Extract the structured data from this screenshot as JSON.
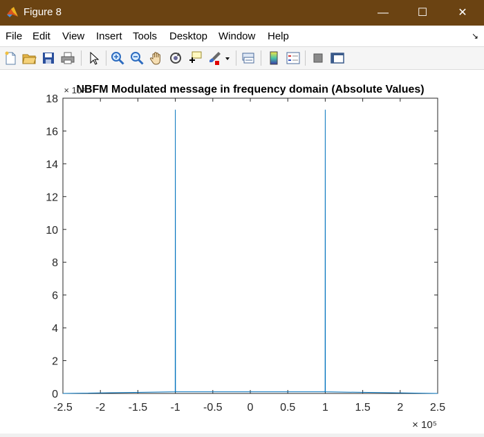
{
  "window": {
    "title": "Figure 8",
    "minimize_symbol": "—",
    "maximize_symbol": "☐",
    "close_symbol": "✕"
  },
  "menu": {
    "items": [
      "File",
      "Edit",
      "View",
      "Insert",
      "Tools",
      "Desktop",
      "Window",
      "Help"
    ],
    "overflow_symbol": "↘"
  },
  "toolbar": {
    "icons": [
      "new-figure-icon",
      "open-folder-icon",
      "save-icon",
      "print-icon",
      "select-arrow-icon",
      "zoom-in-icon",
      "zoom-out-icon",
      "pan-hand-icon",
      "rotate-3d-icon",
      "data-cursor-icon",
      "brush-icon",
      "brush-dropdown-icon",
      "link-plot-icon",
      "insert-colorbar-icon",
      "insert-legend-icon",
      "hide-plot-tools-icon",
      "show-plot-tools-icon"
    ]
  },
  "chart_data": {
    "type": "line",
    "title": "NBFM Modulated message in frequency domain (Absolute Values)",
    "xlabel": "",
    "ylabel": "",
    "x_exponent_label": "× 10⁵",
    "y_exponent_label": "× 10⁴",
    "xlim": [
      -2.5,
      2.5
    ],
    "ylim": [
      0,
      18
    ],
    "x_ticks": [
      "-2.5",
      "-2",
      "-1.5",
      "-1",
      "-0.5",
      "0",
      "0.5",
      "1",
      "1.5",
      "2",
      "2.5"
    ],
    "y_ticks": [
      "0",
      "2",
      "4",
      "6",
      "8",
      "10",
      "12",
      "14",
      "16",
      "18"
    ],
    "grid": false,
    "series_color": "#0072bd",
    "series": [
      {
        "x": [
          -2.5,
          -1.002,
          -1.0,
          -0.998,
          0.998,
          1.0,
          1.002,
          2.5
        ],
        "y": [
          0,
          0.1,
          17.3,
          0.1,
          0.1,
          17.3,
          0.1,
          0
        ]
      }
    ]
  }
}
